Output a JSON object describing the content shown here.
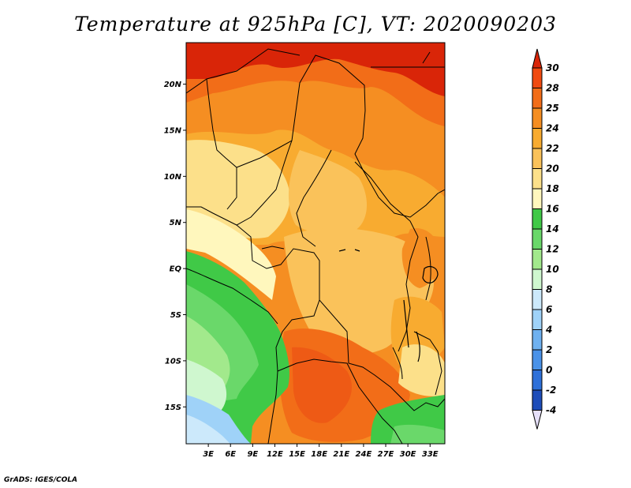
{
  "title": "Temperature at 925hPa [C], VT: 2020090203",
  "credit": "GrADS: IGES/COLA",
  "map": {
    "lat_labels": [
      "20N",
      "15N",
      "10N",
      "5N",
      "EQ",
      "5S",
      "10S",
      "15S"
    ],
    "lon_labels": [
      "3E",
      "6E",
      "9E",
      "12E",
      "15E",
      "18E",
      "21E",
      "24E",
      "27E",
      "30E",
      "33E"
    ]
  },
  "colorbar": {
    "labels": [
      "30",
      "28",
      "25",
      "24",
      "22",
      "20",
      "18",
      "16",
      "14",
      "12",
      "10",
      "8",
      "6",
      "4",
      "2",
      "0",
      "-2",
      "-4"
    ],
    "colors": [
      "#f04a10",
      "#f26d18",
      "#f58e22",
      "#f8ab30",
      "#fac25a",
      "#fce08a",
      "#fff7bd",
      "#40c947",
      "#6ad86a",
      "#a2e98c",
      "#cff7cf",
      "#cce9fb",
      "#9fd2f8",
      "#6fb1f0",
      "#4a92e8",
      "#2e70d9",
      "#1e4db9",
      "#12238f"
    ],
    "top_color": "#d92508",
    "bottom_color": "#e6e0fa"
  },
  "chart_data": {
    "type": "heatmap",
    "title": "Temperature at 925hPa [C], VT: 2020090203",
    "variable": "Temperature at 925hPa",
    "units": "C",
    "valid_time": "2020090203",
    "x_ticks": [
      "3E",
      "6E",
      "9E",
      "12E",
      "15E",
      "18E",
      "21E",
      "24E",
      "27E",
      "30E",
      "33E"
    ],
    "y_ticks": [
      "20N",
      "15N",
      "10N",
      "5N",
      "EQ",
      "5S",
      "10S",
      "15S"
    ],
    "lon_range": [
      0,
      35
    ],
    "lat_range": [
      -19,
      24.5
    ],
    "levels": [
      -4,
      -2,
      0,
      2,
      4,
      6,
      8,
      10,
      12,
      14,
      16,
      18,
      20,
      22,
      24,
      25,
      28,
      30
    ]
  }
}
